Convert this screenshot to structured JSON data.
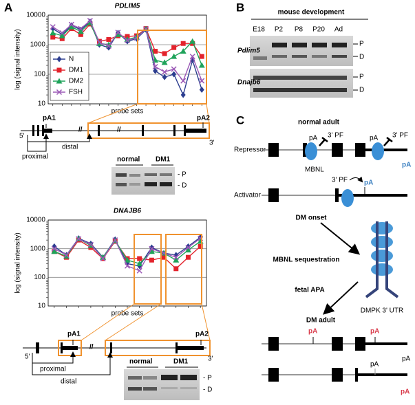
{
  "panel_labels": [
    "A",
    "B",
    "C"
  ],
  "chart_data": [
    {
      "type": "line",
      "title": "PDLIM5",
      "ylabel": "log (signal intensity)",
      "xlabel": "probe sets",
      "categories": [
        null,
        null,
        null,
        null,
        null,
        null,
        null,
        null,
        null,
        null,
        null,
        null,
        null,
        null,
        null,
        null,
        null
      ],
      "log_scale": true,
      "grid": true,
      "legend": "left",
      "ylim": [
        10,
        10000
      ],
      "yticks": [
        10,
        100,
        1000,
        10000
      ],
      "series": [
        {
          "name": "N",
          "color": "#2c3d8f",
          "marker": "diamond",
          "values": [
            3500,
            2200,
            4500,
            3200,
            6000,
            1000,
            800,
            2500,
            1300,
            1600,
            3200,
            130,
            80,
            100,
            20,
            300,
            30
          ]
        },
        {
          "name": "DM1",
          "color": "#e3232c",
          "marker": "square",
          "values": [
            1800,
            1600,
            3500,
            2200,
            5000,
            1300,
            1500,
            2000,
            1900,
            2000,
            3500,
            600,
            500,
            800,
            1100,
            1100,
            400
          ]
        },
        {
          "name": "DM2",
          "color": "#1fa35a",
          "marker": "triangle",
          "values": [
            2500,
            2000,
            4000,
            2800,
            5500,
            1100,
            1000,
            2200,
            1500,
            1800,
            3400,
            300,
            250,
            400,
            600,
            1300,
            200
          ]
        },
        {
          "name": "FSH",
          "color": "#9b59b6",
          "marker": "x",
          "values": [
            4000,
            2500,
            4800,
            3500,
            6500,
            1200,
            900,
            2600,
            1400,
            1700,
            3400,
            180,
            120,
            150,
            60,
            400,
            60
          ]
        }
      ]
    },
    {
      "type": "line",
      "title": "DNAJB6",
      "ylabel": "log (signal intensity)",
      "xlabel": "probe sets",
      "categories": [
        null,
        null,
        null,
        null,
        null,
        null,
        null,
        null,
        null,
        null,
        null,
        null,
        null
      ],
      "log_scale": true,
      "grid": true,
      "ylim": [
        10,
        10000
      ],
      "yticks": [
        10,
        100,
        1000,
        10000
      ],
      "series": [
        {
          "color": "#2c3d8f",
          "marker": "diamond",
          "values": [
            1200,
            600,
            2300,
            1500,
            500,
            2100,
            300,
            250,
            1100,
            700,
            600,
            1200,
            2500
          ]
        },
        {
          "color": "#e3232c",
          "marker": "square",
          "values": [
            800,
            500,
            2000,
            1100,
            450,
            1800,
            450,
            450,
            400,
            500,
            200,
            500,
            1200
          ]
        },
        {
          "color": "#1fa35a",
          "marker": "triangle",
          "values": [
            800,
            550,
            2200,
            1300,
            500,
            1900,
            400,
            300,
            800,
            700,
            400,
            900,
            1800
          ]
        },
        {
          "color": "#9b59b6",
          "marker": "x",
          "values": [
            1000,
            600,
            2200,
            1400,
            450,
            2000,
            250,
            170,
            1000,
            700,
            500,
            1100,
            2300
          ]
        }
      ]
    }
  ],
  "pdlim5_diagram": {
    "pA1": "pA1",
    "pA2": "pA2",
    "five_prime": "5'",
    "three_prime": "3'",
    "proximal": "proximal",
    "distal": "distal",
    "gel": {
      "lanes": [
        "normal",
        "DM1"
      ],
      "bands": [
        "- P",
        "- D"
      ]
    }
  },
  "dnajb6_diagram": {
    "pA1": "pA1",
    "pA2": "pA2",
    "five_prime": "5'",
    "three_prime": "3'",
    "proximal": "proximal",
    "distal": "distal",
    "gel": {
      "lanes": [
        "normal",
        "DM1"
      ],
      "bands": [
        "- P",
        "- D"
      ]
    }
  },
  "panel_b": {
    "title": "mouse development",
    "lanes": [
      "E18",
      "P2",
      "P8",
      "P20",
      "Ad"
    ],
    "genes": [
      "Pdlim5",
      "Dnajb6"
    ],
    "bands": [
      "P",
      "D"
    ]
  },
  "panel_c": {
    "normal_adult": "normal adult",
    "repressor": "Repressor",
    "activator": "Activator",
    "mbnl": "MBNL",
    "pf": "3' PF",
    "pA": "pA",
    "dm_onset": "DM onset",
    "sequestration": "MBNL sequestration",
    "fetal_apa": "fetal APA",
    "dmpk": "DMPK 3' UTR",
    "dm_adult": "DM adult"
  }
}
